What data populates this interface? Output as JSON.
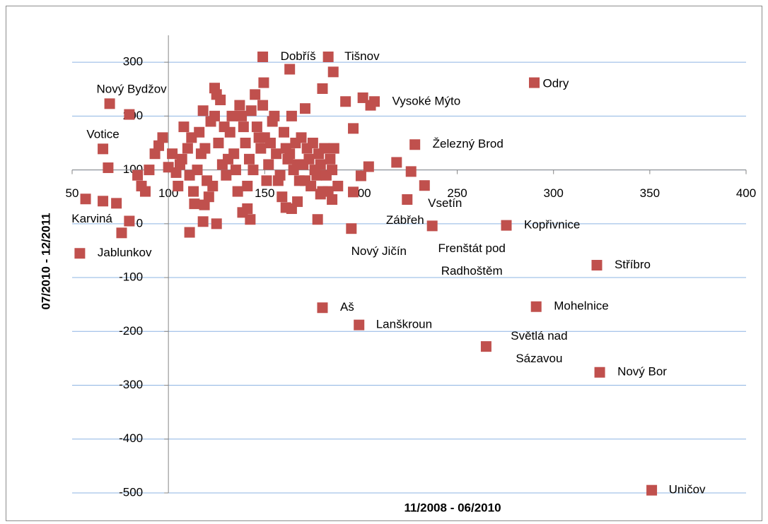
{
  "chart_data": {
    "type": "scatter",
    "x_label": "11/2008 - 06/2010",
    "y_label": "07/2010 - 12/2011",
    "color": "#c0504d",
    "xlim": [
      50,
      400
    ],
    "ylim": [
      -500,
      350
    ],
    "xticks": [
      50,
      100,
      150,
      200,
      250,
      300,
      350,
      400
    ],
    "yticks": [
      -500,
      -400,
      -300,
      -200,
      -100,
      0,
      100,
      200,
      300
    ],
    "xaxis_crosses_y": 100,
    "yaxis_crosses_x": 100,
    "grid": true,
    "labels": [
      "Dobříš",
      "Tišnov",
      "Nový Bydžov",
      "Odry",
      "Vysoké Mýto",
      "Votice",
      "Železný Brod",
      "Vsetín",
      "Karviná",
      "Zábřeh",
      "Frenštát pod Radhoštěm",
      "Kopřivnice",
      "Nový Jičín",
      "Jablunkov",
      "Stříbro",
      "Aš",
      "Mohelnice",
      "Lanškroun",
      "Světlá nad Sázavou",
      "Nový Bor",
      "Uničov"
    ],
    "x": [
      149,
      183,
      69.5,
      290,
      207,
      66,
      228,
      233,
      57,
      224,
      237,
      275.5,
      195,
      54,
      322.5,
      180,
      291,
      199,
      265,
      324,
      351,
      66,
      73,
      68.7,
      79.7,
      75.7,
      79.7,
      111,
      118,
      125,
      142.5,
      138.5,
      177.5,
      185,
      179,
      196,
      200,
      204,
      218.5,
      226,
      196,
      192,
      201,
      205,
      180,
      185.6,
      163,
      149.5,
      124,
      171,
      118.7,
      113.5,
      141,
      161,
      164,
      167,
      100,
      104,
      107,
      110,
      112,
      115,
      117,
      120,
      122,
      124,
      126,
      128,
      130,
      132,
      134,
      136,
      138,
      140,
      142,
      144,
      146,
      148,
      150,
      152,
      154,
      156,
      158,
      160,
      162,
      164,
      166,
      168,
      170,
      172,
      174,
      176,
      178,
      180,
      182,
      184,
      186,
      188,
      105,
      108,
      113,
      118,
      121,
      127,
      133,
      137,
      141,
      145,
      149,
      153,
      157,
      161,
      165,
      169,
      173,
      177,
      181,
      185,
      93,
      95,
      90,
      88,
      86,
      84,
      97,
      102,
      106,
      111,
      116,
      119,
      123,
      125,
      129,
      131,
      135,
      139,
      143,
      147,
      151,
      155,
      159,
      163,
      167,
      171,
      175,
      179,
      183
    ],
    "values": [
      310,
      310,
      223,
      262,
      227,
      139,
      147,
      71,
      46,
      45,
      -4,
      -3,
      -9,
      -55,
      -77,
      -156,
      -154,
      -188,
      -228,
      -276,
      -495,
      42,
      38,
      104,
      203,
      -17,
      5,
      -16,
      4,
      0,
      8,
      21,
      8,
      45,
      55,
      59,
      89,
      106,
      114,
      97,
      177,
      227,
      234,
      220,
      251,
      282,
      287,
      262,
      252,
      214,
      35,
      37,
      28,
      30,
      28,
      41,
      105,
      95,
      120,
      140,
      160,
      100,
      130,
      80,
      190,
      200,
      150,
      110,
      90,
      170,
      130,
      60,
      200,
      150,
      120,
      100,
      180,
      140,
      160,
      110,
      190,
      130,
      90,
      170,
      120,
      200,
      150,
      80,
      110,
      140,
      70,
      100,
      130,
      60,
      90,
      120,
      140,
      70,
      70,
      180,
      60,
      210,
      50,
      230,
      200,
      220,
      70,
      240,
      220,
      150,
      80,
      140,
      100,
      160,
      120,
      90,
      140,
      100,
      130,
      145,
      100,
      60,
      70,
      90,
      160,
      130,
      110,
      90,
      170,
      140,
      70,
      240,
      180,
      120,
      100,
      180,
      210,
      160,
      80,
      200,
      50,
      130,
      110,
      80,
      150,
      110,
      60
    ]
  }
}
